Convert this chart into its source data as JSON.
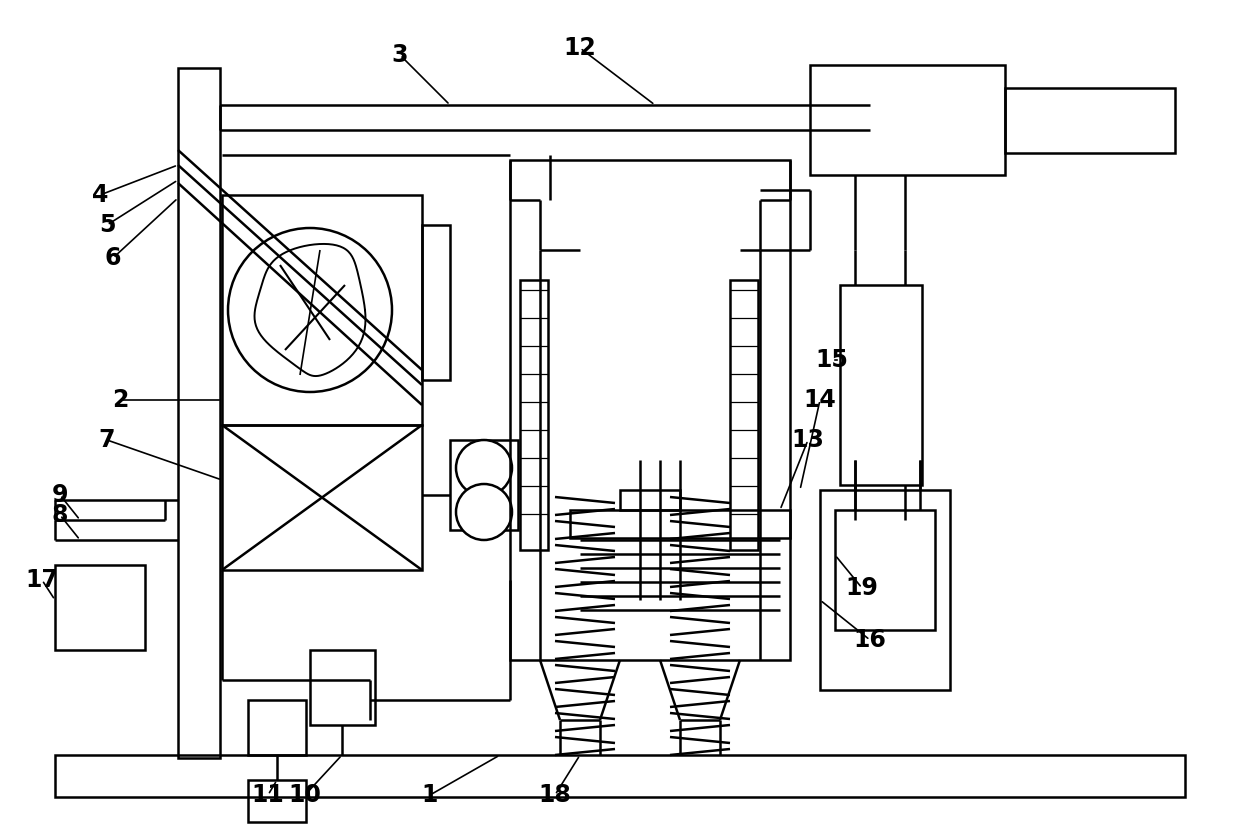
{
  "bg_color": "#ffffff",
  "lc": "#000000",
  "lw": 1.8,
  "thin": 1.0,
  "border": 0.04
}
